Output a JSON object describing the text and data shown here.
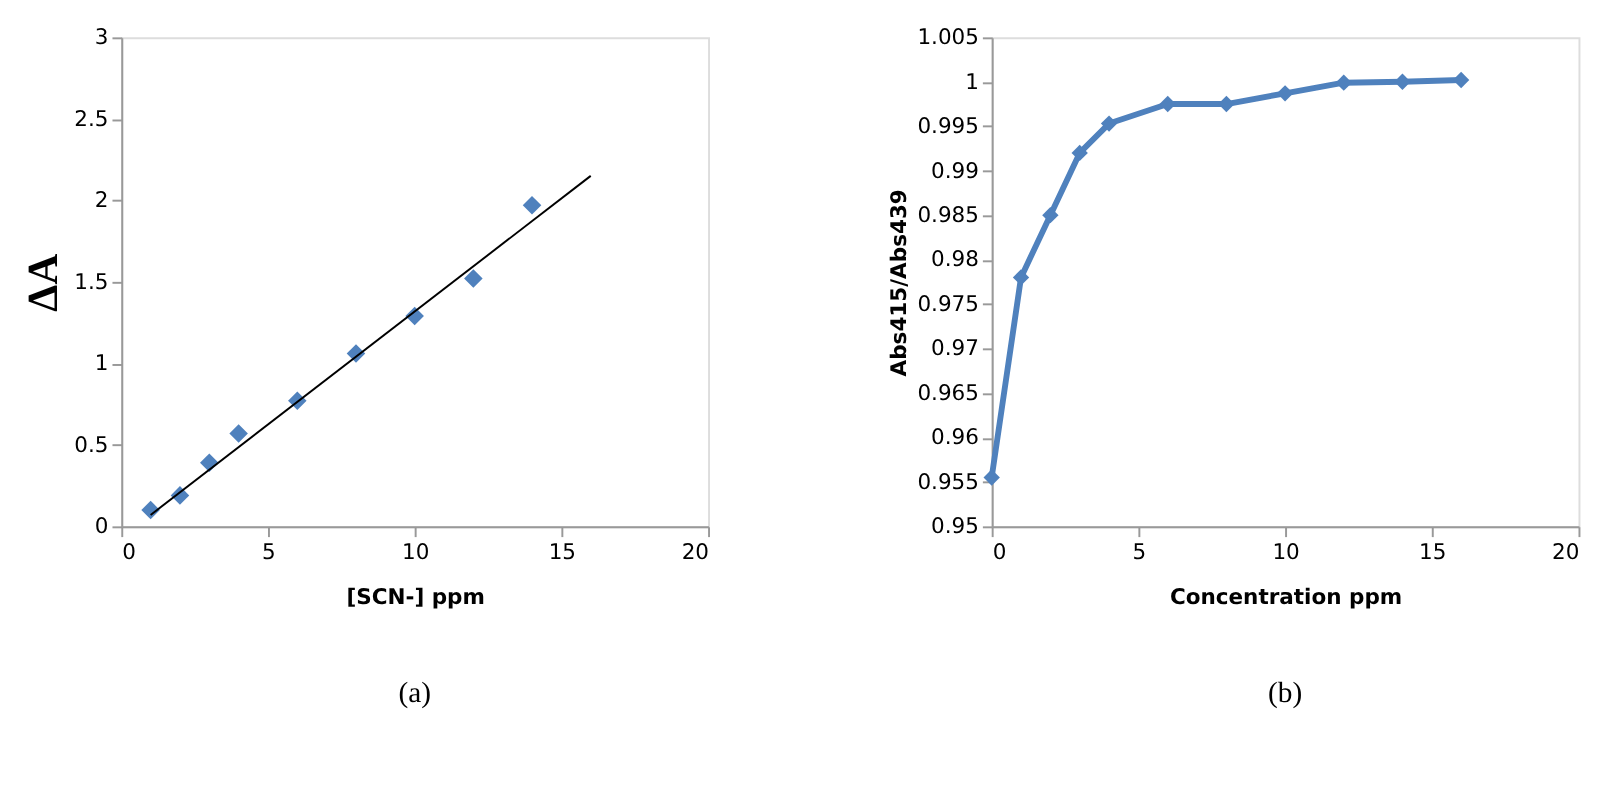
{
  "chart_data": [
    {
      "type": "scatter",
      "xlabel": "[SCN-] ppm",
      "ylabel": "ΔA",
      "xlim": [
        0,
        20
      ],
      "xticks": [
        0,
        5,
        10,
        15,
        20
      ],
      "ylim": [
        0,
        3
      ],
      "yticks": [
        0,
        0.5,
        1,
        1.5,
        2,
        2.5,
        3
      ],
      "grid": false,
      "marker": "diamond",
      "annotations": [
        "(a)"
      ],
      "series": [
        {
          "color": "#4f81bd",
          "x": [
            1,
            2,
            3,
            4,
            6,
            8,
            10,
            12,
            14
          ],
          "values": [
            0.1,
            0.19,
            0.39,
            0.57,
            0.77,
            1.06,
            1.29,
            1.52,
            1.97
          ]
        },
        {
          "type": "line",
          "color": "#000000",
          "marker": "none",
          "line_style": "solid",
          "x": [
            1,
            16
          ],
          "values": [
            0.07,
            2.15
          ]
        }
      ]
    },
    {
      "type": "line",
      "xlabel": "Concentration ppm",
      "ylabel": "Abs415/Abs439",
      "xlim": [
        0,
        20
      ],
      "xticks": [
        0,
        5,
        10,
        15,
        20
      ],
      "ylim": [
        0.95,
        1.005
      ],
      "yticks": [
        0.95,
        0.955,
        0.96,
        0.965,
        0.97,
        0.975,
        0.98,
        0.985,
        0.99,
        0.995,
        1,
        1.005
      ],
      "grid": false,
      "marker": "diamond",
      "line_style": "solid",
      "annotations": [
        "(b)"
      ],
      "series": [
        {
          "color": "#4f81bd",
          "x": [
            0,
            1,
            2,
            3,
            4,
            6,
            8,
            10,
            12,
            14,
            16
          ],
          "values": [
            0.9555,
            0.978,
            0.985,
            0.992,
            0.9953,
            0.9975,
            0.9975,
            0.9987,
            0.9999,
            1.0,
            1.0002
          ]
        }
      ]
    }
  ]
}
